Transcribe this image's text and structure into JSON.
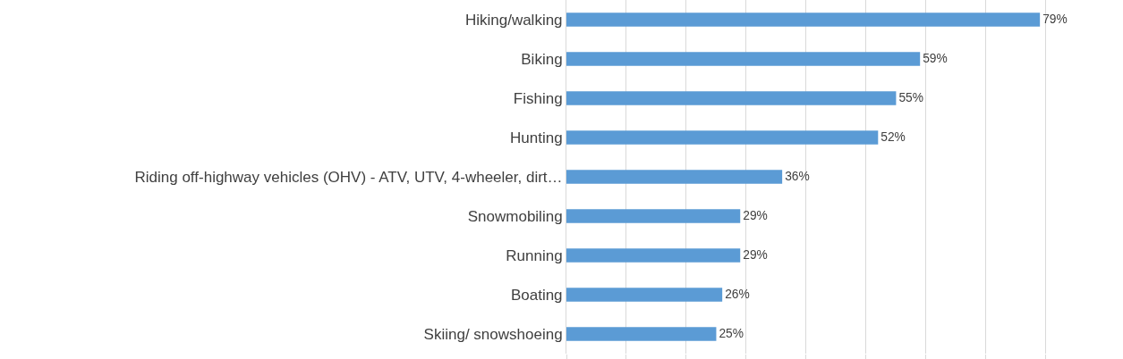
{
  "chart_data": {
    "type": "bar",
    "orientation": "horizontal",
    "categories": [
      "Hiking/walking",
      "Biking",
      "Fishing",
      "Hunting",
      "Riding off-highway vehicles (OHV) - ATV, UTV, 4-wheeler, dirt…",
      "Snowmobiling",
      "Running",
      "Boating",
      "Skiing/ snowshoeing"
    ],
    "values": [
      79,
      59,
      55,
      52,
      36,
      29,
      29,
      26,
      25
    ],
    "value_labels": [
      "79%",
      "59%",
      "55%",
      "52%",
      "36%",
      "29%",
      "29%",
      "26%",
      "25%"
    ],
    "color": "#5b9bd5",
    "xticks": [
      {
        "value": 0,
        "label": null
      },
      {
        "value": 10,
        "label": null
      },
      {
        "value": 20,
        "label": null
      },
      {
        "value": 30,
        "label": null
      },
      {
        "value": 40,
        "label": null
      },
      {
        "value": 50,
        "label": null
      },
      {
        "value": 60,
        "label": null
      },
      {
        "value": 70,
        "label": null
      },
      {
        "value": 80,
        "label": null
      }
    ],
    "grid": "x",
    "tick_labels": "y"
  }
}
